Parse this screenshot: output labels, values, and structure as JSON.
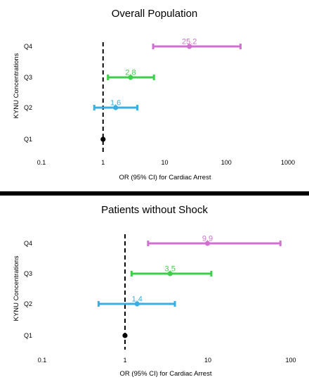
{
  "chart_data": [
    {
      "type": "forest",
      "title": "Overall Population",
      "xlabel": "OR (95% CI) for Cardiac Arrest",
      "ylabel": "KYNU Concentrations",
      "xscale": "log",
      "xlim": [
        0.1,
        1000
      ],
      "xticks": [
        "0.1",
        "1",
        "10",
        "100",
        "1000"
      ],
      "reference_line": 1,
      "categories": [
        "Q4",
        "Q3",
        "Q2",
        "Q1"
      ],
      "points": [
        {
          "label": "Q4",
          "or": 25.2,
          "lo": 6.5,
          "hi": 170,
          "value_label": "25.2",
          "color": "#d070d0"
        },
        {
          "label": "Q3",
          "or": 2.8,
          "lo": 1.2,
          "hi": 6.7,
          "value_label": "2.8",
          "color": "#3ecf4a"
        },
        {
          "label": "Q2",
          "or": 1.6,
          "lo": 0.72,
          "hi": 3.6,
          "value_label": "1.6",
          "color": "#3aaee0"
        },
        {
          "label": "Q1",
          "or": 1,
          "lo": 1,
          "hi": 1,
          "value_label": "",
          "color": "#000000"
        }
      ]
    },
    {
      "type": "forest",
      "title": "Patients without Shock",
      "xlabel": "OR (95% CI) for Cardiac Arrest",
      "ylabel": "KYNU Concentrations",
      "xscale": "log",
      "xlim": [
        0.1,
        100
      ],
      "xticks": [
        "0.1",
        "1",
        "10",
        "100"
      ],
      "reference_line": 1,
      "categories": [
        "Q4",
        "Q3",
        "Q2",
        "Q1"
      ],
      "points": [
        {
          "label": "Q4",
          "or": 9.9,
          "lo": 1.9,
          "hi": 75,
          "value_label": "9.9",
          "color": "#d070d0"
        },
        {
          "label": "Q3",
          "or": 3.5,
          "lo": 1.2,
          "hi": 11,
          "value_label": "3.5",
          "color": "#3ecf4a"
        },
        {
          "label": "Q2",
          "or": 1.4,
          "lo": 0.48,
          "hi": 4.0,
          "value_label": "1.4",
          "color": "#3aaee0"
        },
        {
          "label": "Q1",
          "or": 1,
          "lo": 1,
          "hi": 1,
          "value_label": "",
          "color": "#000000"
        }
      ]
    }
  ]
}
